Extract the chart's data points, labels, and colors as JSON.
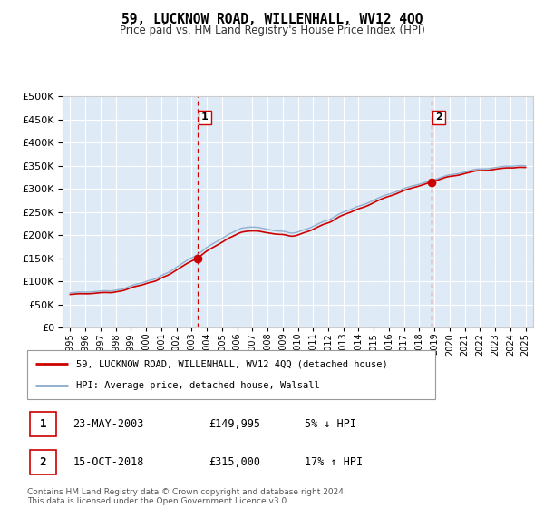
{
  "title": "59, LUCKNOW ROAD, WILLENHALL, WV12 4QQ",
  "subtitle": "Price paid vs. HM Land Registry's House Price Index (HPI)",
  "ylim": [
    0,
    500000
  ],
  "yticks": [
    0,
    50000,
    100000,
    150000,
    200000,
    250000,
    300000,
    350000,
    400000,
    450000,
    500000
  ],
  "xlim_start": 1994.5,
  "xlim_end": 2025.5,
  "xtick_years": [
    1995,
    1996,
    1997,
    1998,
    1999,
    2000,
    2001,
    2002,
    2003,
    2004,
    2005,
    2006,
    2007,
    2008,
    2009,
    2010,
    2011,
    2012,
    2013,
    2014,
    2015,
    2016,
    2017,
    2018,
    2019,
    2020,
    2021,
    2022,
    2023,
    2024,
    2025
  ],
  "sale1_x": 2003.38,
  "sale1_y": 149995,
  "sale2_x": 2018.79,
  "sale2_y": 315000,
  "property_color": "#cc0000",
  "hpi_color": "#88aacc",
  "plot_bg_color": "#deeaf5",
  "grid_color": "#ffffff",
  "legend_line1": "59, LUCKNOW ROAD, WILLENHALL, WV12 4QQ (detached house)",
  "legend_line2": "HPI: Average price, detached house, Walsall",
  "table_row1": [
    "1",
    "23-MAY-2003",
    "£149,995",
    "5% ↓ HPI"
  ],
  "table_row2": [
    "2",
    "15-OCT-2018",
    "£315,000",
    "17% ↑ HPI"
  ],
  "footer1": "Contains HM Land Registry data © Crown copyright and database right 2024.",
  "footer2": "This data is licensed under the Open Government Licence v3.0."
}
